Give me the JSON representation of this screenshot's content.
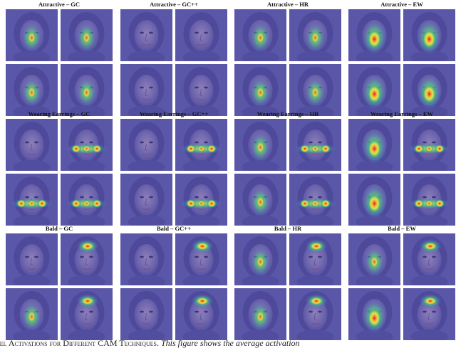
{
  "groups": [
    {
      "title": "Attractive – GC",
      "panels": [
        {
          "heat": "face"
        },
        {
          "heat": "face"
        },
        {
          "heat": "face"
        },
        {
          "heat": "face"
        }
      ]
    },
    {
      "title": "Attractive – GC++",
      "panels": [
        {
          "heat": "none"
        },
        {
          "heat": "none"
        },
        {
          "heat": "none"
        },
        {
          "heat": "none"
        }
      ]
    },
    {
      "title": "Attractive – HR",
      "panels": [
        {
          "heat": "face"
        },
        {
          "heat": "face"
        },
        {
          "heat": "face"
        },
        {
          "heat": "face"
        }
      ]
    },
    {
      "title": "Attractive – EW",
      "panels": [
        {
          "heat": "face-strong"
        },
        {
          "heat": "face-strong"
        },
        {
          "heat": "face-strong"
        },
        {
          "heat": "face-strong"
        }
      ]
    },
    {
      "title": "Wearing Earrings – GC",
      "panels": [
        {
          "heat": "none"
        },
        {
          "heat": "ears"
        },
        {
          "heat": "ears"
        },
        {
          "heat": "ears"
        }
      ]
    },
    {
      "title": "Wearing Earrings – GC++",
      "panels": [
        {
          "heat": "none"
        },
        {
          "heat": "ears"
        },
        {
          "heat": "none"
        },
        {
          "heat": "ears"
        }
      ]
    },
    {
      "title": "Wearing Earrings – HR",
      "panels": [
        {
          "heat": "face"
        },
        {
          "heat": "ears"
        },
        {
          "heat": "face"
        },
        {
          "heat": "ears"
        }
      ]
    },
    {
      "title": "Wearing Earrings – EW",
      "panels": [
        {
          "heat": "face-strong"
        },
        {
          "heat": "ears"
        },
        {
          "heat": "face-strong"
        },
        {
          "heat": "ears"
        }
      ]
    },
    {
      "title": "Bald – GC",
      "panels": [
        {
          "heat": "none"
        },
        {
          "heat": "top"
        },
        {
          "heat": "face"
        },
        {
          "heat": "top"
        }
      ]
    },
    {
      "title": "Bald – GC++",
      "panels": [
        {
          "heat": "none"
        },
        {
          "heat": "top"
        },
        {
          "heat": "none"
        },
        {
          "heat": "top"
        }
      ]
    },
    {
      "title": "Bald – HR",
      "panels": [
        {
          "heat": "face"
        },
        {
          "heat": "top"
        },
        {
          "heat": "face"
        },
        {
          "heat": "top"
        }
      ]
    },
    {
      "title": "Bald – EW",
      "panels": [
        {
          "heat": "face"
        },
        {
          "heat": "top"
        },
        {
          "heat": "face-strong"
        },
        {
          "heat": "top"
        }
      ]
    }
  ],
  "caption": {
    "label": "del Activations for Different CAM Techniques.",
    "text": " This figure shows the average activation"
  }
}
